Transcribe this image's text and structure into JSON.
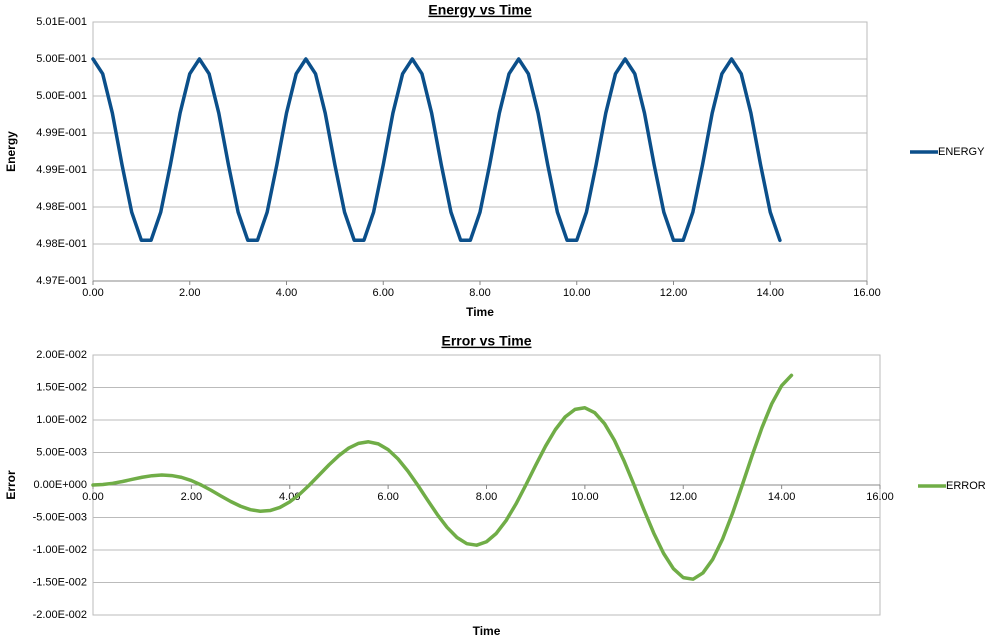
{
  "chart_data": [
    {
      "type": "line",
      "title": "Energy vs Time",
      "x_label": "Time",
      "y_label": "Energy",
      "x": [
        0,
        0.2,
        0.4,
        0.6,
        0.8,
        1,
        1.2,
        1.4,
        1.6,
        1.8,
        2,
        2.2,
        2.4,
        2.6,
        2.8,
        3,
        3.2,
        3.4,
        3.6,
        3.8,
        4,
        4.2,
        4.4,
        4.6,
        4.8,
        5,
        5.2,
        5.4,
        5.6,
        5.8,
        6,
        6.2,
        6.4,
        6.6,
        6.8,
        7,
        7.2,
        7.4,
        7.6,
        7.8,
        8,
        8.2,
        8.4,
        8.6,
        8.8,
        9,
        9.2,
        9.4,
        9.6,
        9.8,
        10,
        10.2,
        10.4,
        10.6,
        10.8,
        11,
        11.2,
        11.4,
        11.6,
        11.8,
        12,
        12.2,
        12.4,
        12.6,
        12.8,
        13,
        13.2,
        13.4,
        13.6,
        13.8,
        14,
        14.2
      ],
      "series": [
        {
          "name": "ENERGY",
          "color": "#0b4f8a",
          "values": [
            0.5002,
            0.5,
            0.49947,
            0.49877,
            0.49813,
            0.49775,
            0.49775,
            0.49813,
            0.49877,
            0.49947,
            0.5,
            0.5002,
            0.5,
            0.49947,
            0.49877,
            0.49813,
            0.49775,
            0.49775,
            0.49813,
            0.49877,
            0.49947,
            0.5,
            0.5002,
            0.5,
            0.49947,
            0.49877,
            0.49813,
            0.49775,
            0.49775,
            0.49813,
            0.49877,
            0.49947,
            0.5,
            0.5002,
            0.5,
            0.49947,
            0.49877,
            0.49813,
            0.49775,
            0.49775,
            0.49813,
            0.49877,
            0.49947,
            0.5,
            0.5002,
            0.5,
            0.49947,
            0.49877,
            0.49813,
            0.49775,
            0.49775,
            0.49813,
            0.49877,
            0.49947,
            0.5,
            0.5002,
            0.5,
            0.49947,
            0.49877,
            0.49813,
            0.49775,
            0.49775,
            0.49813,
            0.49877,
            0.49947,
            0.5,
            0.5002,
            0.5,
            0.49947,
            0.49877,
            0.49813,
            0.49775
          ]
        }
      ],
      "xlim": [
        0,
        16
      ],
      "xticks": [
        {
          "value": 0,
          "label": "0.00"
        },
        {
          "value": 2,
          "label": "2.00"
        },
        {
          "value": 4,
          "label": "4.00"
        },
        {
          "value": 6,
          "label": "6.00"
        },
        {
          "value": 8,
          "label": "8.00"
        },
        {
          "value": 10,
          "label": "10.00"
        },
        {
          "value": 12,
          "label": "12.00"
        },
        {
          "value": 14,
          "label": "14.00"
        },
        {
          "value": 16,
          "label": "16.00"
        }
      ],
      "ylim": [
        0.4972,
        0.5007
      ],
      "yticks": [
        {
          "value": 0.4972,
          "label": "4.97E-001"
        },
        {
          "value": 0.4977,
          "label": "4.98E-001"
        },
        {
          "value": 0.4982,
          "label": "4.98E-001"
        },
        {
          "value": 0.4987,
          "label": "4.99E-001"
        },
        {
          "value": 0.4992,
          "label": "4.99E-001"
        },
        {
          "value": 0.4997,
          "label": "5.00E-001"
        },
        {
          "value": 0.5002,
          "label": "5.00E-001"
        },
        {
          "value": 0.5007,
          "label": "5.01E-001"
        }
      ],
      "grid": true,
      "legend": "right"
    },
    {
      "type": "line",
      "title": "Error vs Time",
      "x_label": "Time",
      "y_label": "Error",
      "x": [
        0,
        0.2,
        0.4,
        0.6,
        0.8,
        1,
        1.2,
        1.4,
        1.6,
        1.8,
        2,
        2.2,
        2.4,
        2.6,
        2.8,
        3,
        3.2,
        3.4,
        3.6,
        3.8,
        4,
        4.2,
        4.4,
        4.6,
        4.8,
        5,
        5.2,
        5.4,
        5.6,
        5.8,
        6,
        6.2,
        6.4,
        6.6,
        6.8,
        7,
        7.2,
        7.4,
        7.6,
        7.8,
        8,
        8.2,
        8.4,
        8.6,
        8.8,
        9,
        9.2,
        9.4,
        9.6,
        9.8,
        10,
        10.2,
        10.4,
        10.6,
        10.8,
        11,
        11.2,
        11.4,
        11.6,
        11.8,
        12,
        12.2,
        12.4,
        12.6,
        12.8,
        13,
        13.2,
        13.4,
        13.6,
        13.8,
        14,
        14.2
      ],
      "series": [
        {
          "name": "ERROR",
          "color": "#70ad47",
          "values": [
            0,
            7e-05,
            0.00026,
            0.00054,
            0.00087,
            0.00119,
            0.00143,
            0.00153,
            0.00145,
            0.00117,
            0.00068,
            0,
            -0.00081,
            -0.00169,
            -0.00254,
            -0.00327,
            -0.0038,
            -0.00404,
            -0.00393,
            -0.00345,
            -0.00259,
            -0.00142,
            0,
            0.00156,
            0.00311,
            0.00453,
            0.00568,
            0.00641,
            0.00665,
            0.00633,
            0.00544,
            0.00402,
            0.00216,
            0,
            -0.0023,
            -0.00454,
            -0.00653,
            -0.00808,
            -0.00903,
            -0.00926,
            -0.00873,
            -0.00744,
            -0.00545,
            -0.00291,
            0,
            0.00304,
            0.00597,
            0.00852,
            0.01048,
            0.01164,
            0.01188,
            0.01113,
            0.00943,
            0.00688,
            0.00365,
            0,
            -0.00379,
            -0.0074,
            -0.01052,
            -0.01288,
            -0.01425,
            -0.01449,
            -0.01353,
            -0.01143,
            -0.0083,
            -0.00439,
            0,
            0.00453,
            0.00882,
            0.01251,
            0.01528,
            0.01687
          ]
        }
      ],
      "xlim": [
        0,
        16
      ],
      "xticks": [
        {
          "value": 0,
          "label": "0.00"
        },
        {
          "value": 2,
          "label": "2.00"
        },
        {
          "value": 4,
          "label": "4.00"
        },
        {
          "value": 6,
          "label": "6.00"
        },
        {
          "value": 8,
          "label": "8.00"
        },
        {
          "value": 10,
          "label": "10.00"
        },
        {
          "value": 12,
          "label": "12.00"
        },
        {
          "value": 14,
          "label": "14.00"
        },
        {
          "value": 16,
          "label": "16.00"
        }
      ],
      "ylim": [
        -0.02,
        0.02
      ],
      "yticks": [
        {
          "value": -0.02,
          "label": "-2.00E-002"
        },
        {
          "value": -0.015,
          "label": "-1.50E-002"
        },
        {
          "value": -0.01,
          "label": "-1.00E-002"
        },
        {
          "value": -0.005,
          "label": "-5.00E-003"
        },
        {
          "value": 0,
          "label": "0.00E+000"
        },
        {
          "value": 0.005,
          "label": "5.00E-003"
        },
        {
          "value": 0.01,
          "label": "1.00E-002"
        },
        {
          "value": 0.015,
          "label": "1.50E-002"
        },
        {
          "value": 0.02,
          "label": "2.00E-002"
        }
      ],
      "grid": true,
      "legend": "right"
    }
  ]
}
